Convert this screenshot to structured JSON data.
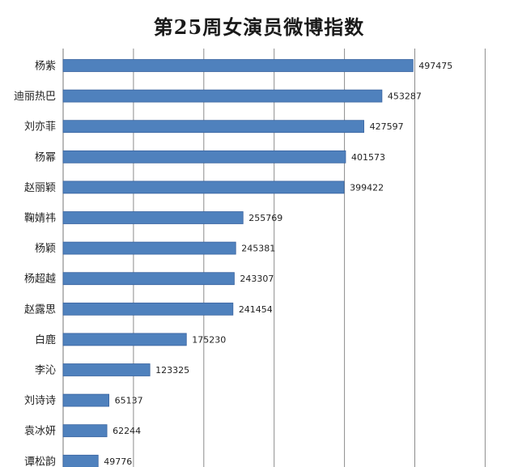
{
  "chart_data": {
    "type": "bar",
    "orientation": "horizontal",
    "title": "第25周女演员微博指数",
    "xlabel": "",
    "ylabel": "",
    "categories": [
      "杨紫",
      "迪丽热巴",
      "刘亦菲",
      "杨幂",
      "赵丽颖",
      "鞠婧祎",
      "杨颖",
      "杨超越",
      "赵露思",
      "白鹿",
      "李沁",
      "刘诗诗",
      "袁冰妍",
      "谭松韵"
    ],
    "values": [
      497475,
      453287,
      427597,
      401573,
      399422,
      255769,
      245381,
      243307,
      241454,
      175230,
      123325,
      65137,
      62244,
      49776
    ],
    "data_labels": [
      "497475",
      "453287",
      "427597",
      "401573",
      "399422",
      "255769",
      "245381",
      "243307",
      "241454",
      "175230",
      "123325",
      "65137",
      "62244",
      "49776"
    ],
    "xlim": [
      0,
      600000
    ],
    "gridlines": "vertical",
    "grid_values": [
      0,
      100000,
      200000,
      300000,
      400000,
      500000,
      600000
    ],
    "legend": "none",
    "bar_color": "#4f81bd",
    "bar_edge_color": "#3a64a0",
    "grid_color": "#8c8c8c"
  }
}
